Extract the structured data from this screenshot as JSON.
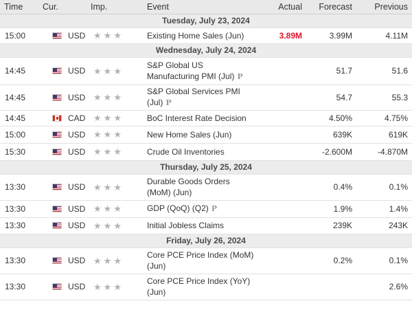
{
  "headers": {
    "time": "Time",
    "currency": "Cur.",
    "importance": "Imp.",
    "event": "Event",
    "actual": "Actual",
    "forecast": "Forecast",
    "previous": "Previous"
  },
  "colors": {
    "actual_below": "#e0162b",
    "star_gray": "#b3b3b3",
    "date_row_bg": "#ececec"
  },
  "star_glyph": "★",
  "prelim_glyph": "P",
  "days": [
    {
      "date": "Tuesday, July 23, 2024",
      "events": [
        {
          "time": "15:00",
          "currency": "USD",
          "flag": "us-flag-icon",
          "event": "Existing Home Sales (Jun)",
          "actual": "3.89M",
          "forecast": "3.99M",
          "previous": "4.11M"
        }
      ]
    },
    {
      "date": "Wednesday, July 24, 2024",
      "events": [
        {
          "time": "14:45",
          "currency": "USD",
          "flag": "us-flag-icon",
          "event": "S&P Global US Manufacturing PMI (Jul)",
          "prelim": true,
          "actual": "",
          "forecast": "51.7",
          "previous": "51.6"
        },
        {
          "time": "14:45",
          "currency": "USD",
          "flag": "us-flag-icon",
          "event": "S&P Global Services PMI (Jul)",
          "prelim": true,
          "actual": "",
          "forecast": "54.7",
          "previous": "55.3"
        },
        {
          "time": "14:45",
          "currency": "CAD",
          "flag": "ca-flag-icon",
          "event": "BoC Interest Rate Decision",
          "actual": "",
          "forecast": "4.50%",
          "previous": "4.75%"
        },
        {
          "time": "15:00",
          "currency": "USD",
          "flag": "us-flag-icon",
          "event": "New Home Sales (Jun)",
          "actual": "",
          "forecast": "639K",
          "previous": "619K"
        },
        {
          "time": "15:30",
          "currency": "USD",
          "flag": "us-flag-icon",
          "event": "Crude Oil Inventories",
          "actual": "",
          "forecast": "-2.600M",
          "previous": "-4.870M"
        }
      ]
    },
    {
      "date": "Thursday, July 25, 2024",
      "events": [
        {
          "time": "13:30",
          "currency": "USD",
          "flag": "us-flag-icon",
          "event": "Durable Goods Orders (MoM) (Jun)",
          "actual": "",
          "forecast": "0.4%",
          "previous": "0.1%"
        },
        {
          "time": "13:30",
          "currency": "USD",
          "flag": "us-flag-icon",
          "event": "GDP (QoQ) (Q2)",
          "prelim": true,
          "actual": "",
          "forecast": "1.9%",
          "previous": "1.4%"
        },
        {
          "time": "13:30",
          "currency": "USD",
          "flag": "us-flag-icon",
          "event": "Initial Jobless Claims",
          "actual": "",
          "forecast": "239K",
          "previous": "243K"
        }
      ]
    },
    {
      "date": "Friday, July 26, 2024",
      "events": [
        {
          "time": "13:30",
          "currency": "USD",
          "flag": "us-flag-icon",
          "event": "Core PCE Price Index (MoM) (Jun)",
          "actual": "",
          "forecast": "0.2%",
          "previous": "0.1%"
        },
        {
          "time": "13:30",
          "currency": "USD",
          "flag": "us-flag-icon",
          "event": "Core PCE Price Index (YoY) (Jun)",
          "actual": "",
          "forecast": "",
          "previous": "2.6%"
        }
      ]
    }
  ]
}
